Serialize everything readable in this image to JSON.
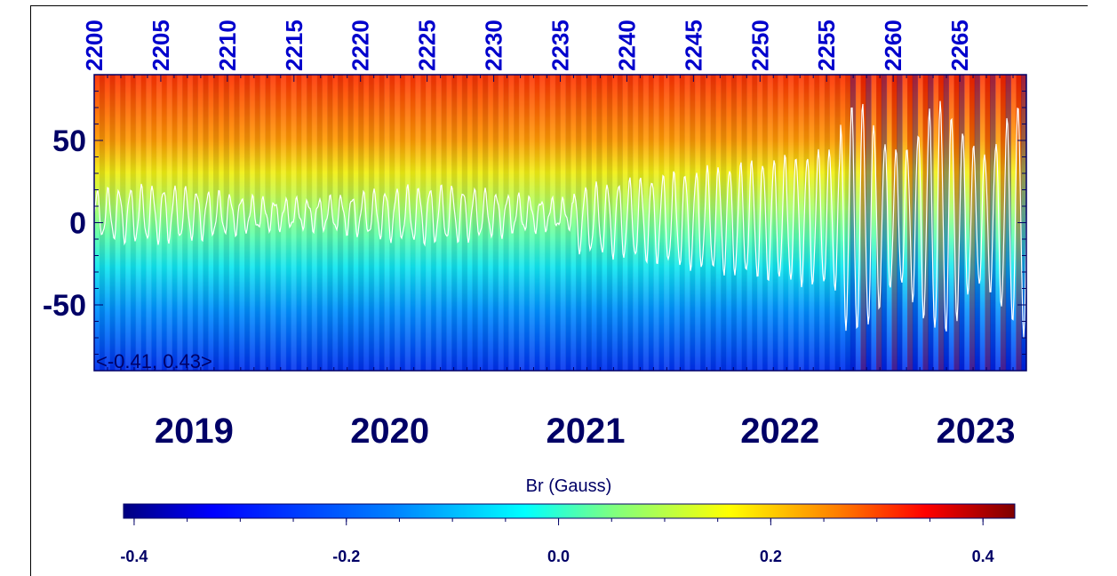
{
  "chart_data": {
    "type": "heatmap",
    "title": "",
    "xlabel": "",
    "ylabel": "",
    "top_axis": {
      "ticks": [
        "2200",
        "2205",
        "2210",
        "2215",
        "2220",
        "2225",
        "2230",
        "2235",
        "2240",
        "2245",
        "2250",
        "2255",
        "2260",
        "2265"
      ],
      "range": [
        2200,
        2270
      ]
    },
    "bottom_axis": {
      "ticks": [
        "2019",
        "2020",
        "2021",
        "2022",
        "2023"
      ],
      "tick_positions": [
        2207.5,
        2222.2,
        2236.9,
        2251.5,
        2266.2
      ]
    },
    "y_axis": {
      "ticks": [
        "50",
        "0",
        "-50"
      ],
      "tick_values": [
        50,
        0,
        -50
      ],
      "range": [
        -90,
        90
      ]
    },
    "range_annotation": "<-0.41, 0.43>",
    "colorbar": {
      "label": "Br (Gauss)",
      "ticks": [
        "-0.4",
        "-0.2",
        "0.0",
        "0.2",
        "0.4"
      ],
      "tick_values": [
        -0.4,
        -0.2,
        0.0,
        0.2,
        0.4
      ],
      "range": [
        -0.41,
        0.43
      ],
      "colormap": [
        "#00007f",
        "#0000ff",
        "#007fff",
        "#00ffff",
        "#7fff7f",
        "#ffff00",
        "#ff7f00",
        "#ff0000",
        "#7f0000"
      ]
    },
    "overlay_line": {
      "color": "#ffffff"
    },
    "grid": false
  }
}
